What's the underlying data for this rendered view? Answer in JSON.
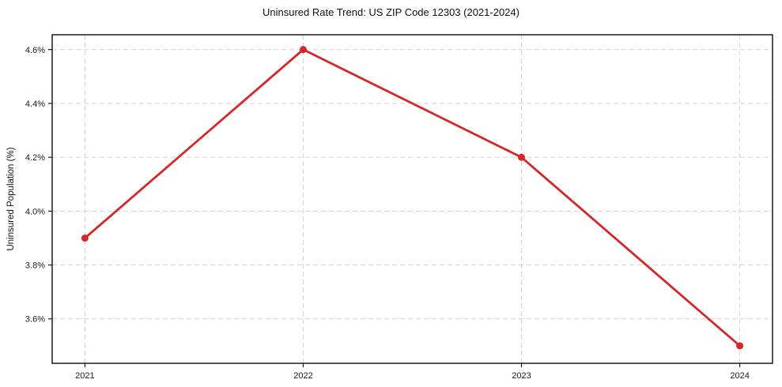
{
  "chart_data": {
    "type": "line",
    "title": "Uninsured Rate Trend: US ZIP Code 12303 (2021-2024)",
    "xlabel": "",
    "ylabel": "Uninsured Population (%)",
    "x": [
      2021,
      2022,
      2023,
      2024
    ],
    "x_tick_labels": [
      "2021",
      "2022",
      "2023",
      "2024"
    ],
    "y_ticks": [
      3.6,
      3.8,
      4.0,
      4.2,
      4.4,
      4.6
    ],
    "y_tick_labels": [
      "3.6%",
      "3.8%",
      "4.0%",
      "4.2%",
      "4.4%",
      "4.6%"
    ],
    "series": [
      {
        "name": "Uninsured Population (%)",
        "values": [
          3.9,
          4.6,
          4.2,
          3.5
        ],
        "color": "#d62728",
        "marker": "circle"
      }
    ],
    "xlim": [
      2020.85,
      2024.15
    ],
    "ylim": [
      3.435,
      4.655
    ],
    "grid": true,
    "grid_color": "#cccccc",
    "grid_style": "dashed",
    "frame_color": "#1a1a1a",
    "background_color": "#ffffff",
    "legend": "none"
  }
}
